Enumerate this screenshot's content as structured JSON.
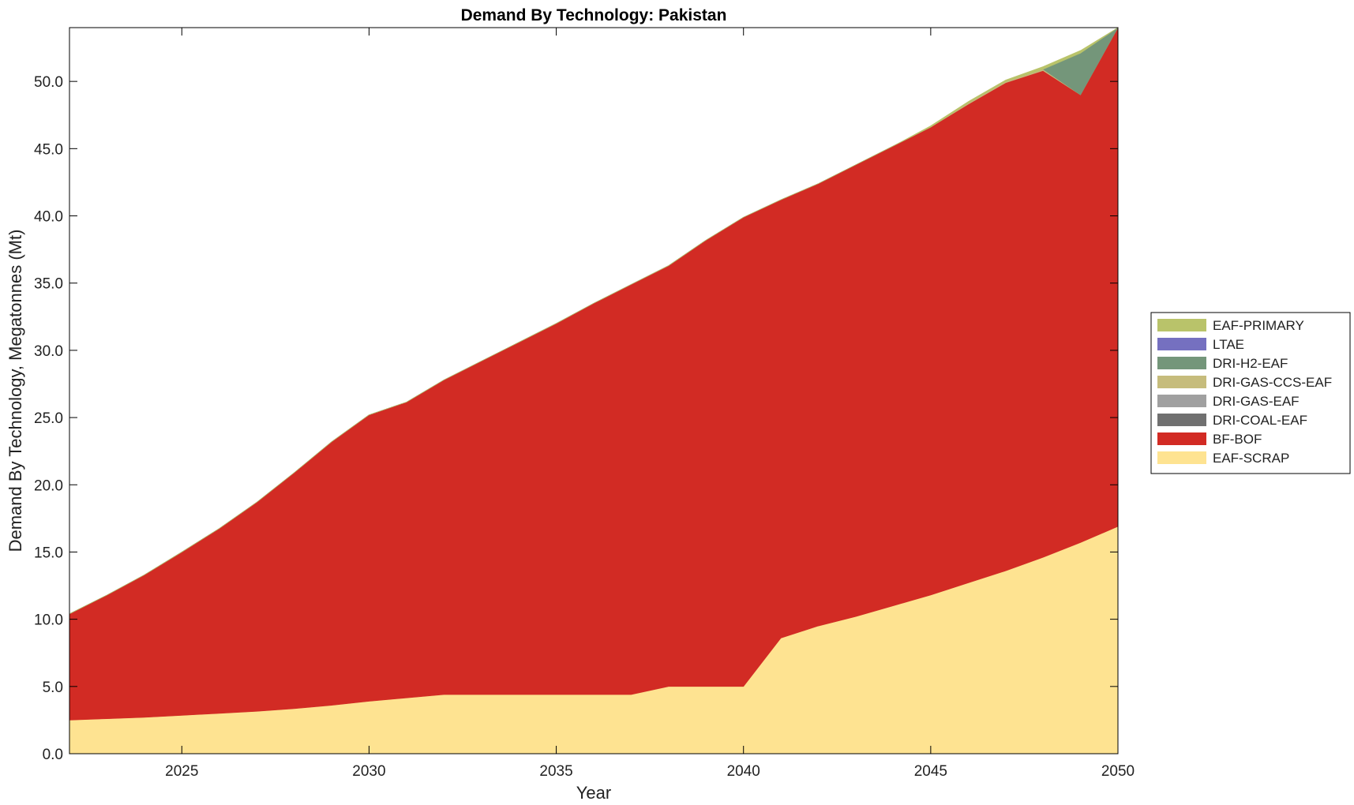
{
  "chart_data": {
    "type": "area",
    "stacked": true,
    "title": "Demand By Technology: Pakistan",
    "xlabel": "Year",
    "ylabel": "Demand By Technology, Megatonnes (Mt)",
    "xlim": [
      2022,
      2050
    ],
    "ylim": [
      0,
      54
    ],
    "xticks": [
      "2025",
      "2030",
      "2035",
      "2040",
      "2045",
      "2050"
    ],
    "yticks": [
      "0.0",
      "5.0",
      "10.0",
      "15.0",
      "20.0",
      "25.0",
      "30.0",
      "35.0",
      "40.0",
      "45.0",
      "50.0"
    ],
    "legend_position": "right",
    "grid": false,
    "x": [
      2022,
      2023,
      2024,
      2025,
      2026,
      2027,
      2028,
      2029,
      2030,
      2031,
      2032,
      2033,
      2034,
      2035,
      2036,
      2037,
      2038,
      2039,
      2040,
      2041,
      2042,
      2043,
      2044,
      2045,
      2046,
      2047,
      2048,
      2049,
      2050
    ],
    "series": [
      {
        "name": "EAF-SCRAP",
        "color": "#fee391",
        "values": [
          2.5,
          2.6,
          2.7,
          2.85,
          3.0,
          3.15,
          3.35,
          3.6,
          3.9,
          4.15,
          4.4,
          4.4,
          4.4,
          4.4,
          4.4,
          4.4,
          5.0,
          5.0,
          5.0,
          8.6,
          9.5,
          10.2,
          11.0,
          11.8,
          12.7,
          13.6,
          14.6,
          15.7,
          16.9
        ]
      },
      {
        "name": "BF-BOF",
        "color": "#d22b24",
        "values": [
          7.9,
          9.2,
          10.6,
          12.15,
          13.75,
          15.55,
          17.55,
          19.6,
          21.3,
          22.0,
          23.4,
          24.8,
          26.2,
          27.6,
          29.1,
          30.5,
          31.3,
          33.2,
          34.9,
          32.6,
          32.9,
          33.6,
          34.2,
          34.8,
          35.6,
          36.3,
          36.2,
          33.3,
          37.1
        ]
      },
      {
        "name": "DRI-COAL-EAF",
        "color": "#707070",
        "values": [
          0,
          0,
          0,
          0,
          0,
          0,
          0,
          0,
          0,
          0,
          0,
          0,
          0,
          0,
          0,
          0,
          0,
          0,
          0,
          0,
          0,
          0,
          0,
          0,
          0,
          0,
          0,
          0,
          0
        ]
      },
      {
        "name": "DRI-GAS-EAF",
        "color": "#a0a0a0",
        "values": [
          0,
          0,
          0,
          0,
          0,
          0,
          0,
          0,
          0,
          0,
          0,
          0,
          0,
          0,
          0,
          0,
          0,
          0,
          0,
          0,
          0,
          0,
          0,
          0,
          0,
          0,
          0,
          0,
          0
        ]
      },
      {
        "name": "DRI-GAS-CCS-EAF",
        "color": "#c6bc7c",
        "values": [
          0,
          0,
          0,
          0,
          0,
          0,
          0,
          0,
          0,
          0,
          0,
          0,
          0,
          0,
          0,
          0,
          0,
          0,
          0,
          0,
          0,
          0,
          0,
          0,
          0.1,
          0.1,
          0.1,
          0,
          0
        ]
      },
      {
        "name": "DRI-H2-EAF",
        "color": "#74967a",
        "values": [
          0,
          0,
          0,
          0,
          0,
          0,
          0,
          0,
          0,
          0,
          0,
          0,
          0,
          0,
          0,
          0,
          0,
          0,
          0,
          0,
          0,
          0,
          0,
          0,
          0,
          0,
          0,
          3.1,
          0
        ]
      },
      {
        "name": "LTAE",
        "color": "#7570c0",
        "values": [
          0,
          0,
          0,
          0,
          0,
          0,
          0,
          0,
          0,
          0,
          0,
          0,
          0,
          0,
          0,
          0,
          0,
          0,
          0,
          0,
          0,
          0,
          0,
          0,
          0,
          0,
          0,
          0,
          0
        ]
      },
      {
        "name": "EAF-PRIMARY",
        "color": "#b9c36a",
        "values": [
          0,
          0,
          0,
          0,
          0,
          0,
          0,
          0,
          0,
          0,
          0,
          0,
          0,
          0,
          0,
          0,
          0,
          0,
          0,
          0,
          0,
          0,
          0,
          0.1,
          0.1,
          0.1,
          0.2,
          0.2,
          0
        ]
      }
    ],
    "legend_order": [
      "EAF-PRIMARY",
      "LTAE",
      "DRI-H2-EAF",
      "DRI-GAS-CCS-EAF",
      "DRI-GAS-EAF",
      "DRI-COAL-EAF",
      "BF-BOF",
      "EAF-SCRAP"
    ]
  }
}
